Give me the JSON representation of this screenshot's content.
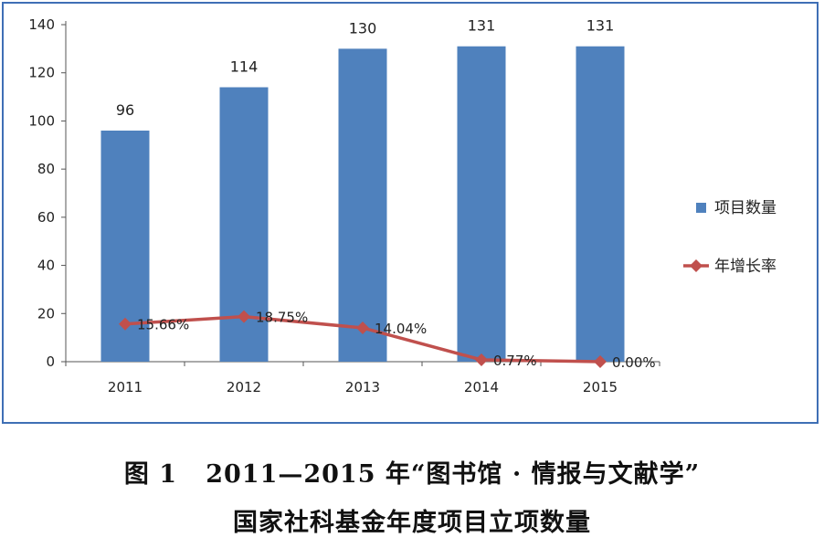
{
  "chart_data": {
    "type": "bar",
    "categories": [
      "2011",
      "2012",
      "2013",
      "2014",
      "2015"
    ],
    "series": [
      {
        "name": "项目数量",
        "type": "bar",
        "values": [
          96,
          114,
          130,
          131,
          131
        ],
        "labels": [
          "96",
          "114",
          "130",
          "131",
          "131"
        ]
      },
      {
        "name": "年增长率",
        "type": "line",
        "values": [
          15.66,
          18.75,
          14.04,
          0.77,
          0.0
        ],
        "labels": [
          "15.66%",
          "18.75%",
          "14.04%",
          "0.77%",
          "0.00%"
        ]
      }
    ],
    "ylim": [
      0,
      140
    ],
    "yticks": [
      "0",
      "20",
      "40",
      "60",
      "80",
      "100",
      "120",
      "140"
    ],
    "legend_position": "right",
    "colors": {
      "bar": "#4f81bd",
      "line": "#c0504d"
    }
  },
  "caption": {
    "line1": "图 1   2011—2015 年“图书馆 · 情报与文献学”",
    "line2": "国家社科基金年度项目立项数量"
  }
}
